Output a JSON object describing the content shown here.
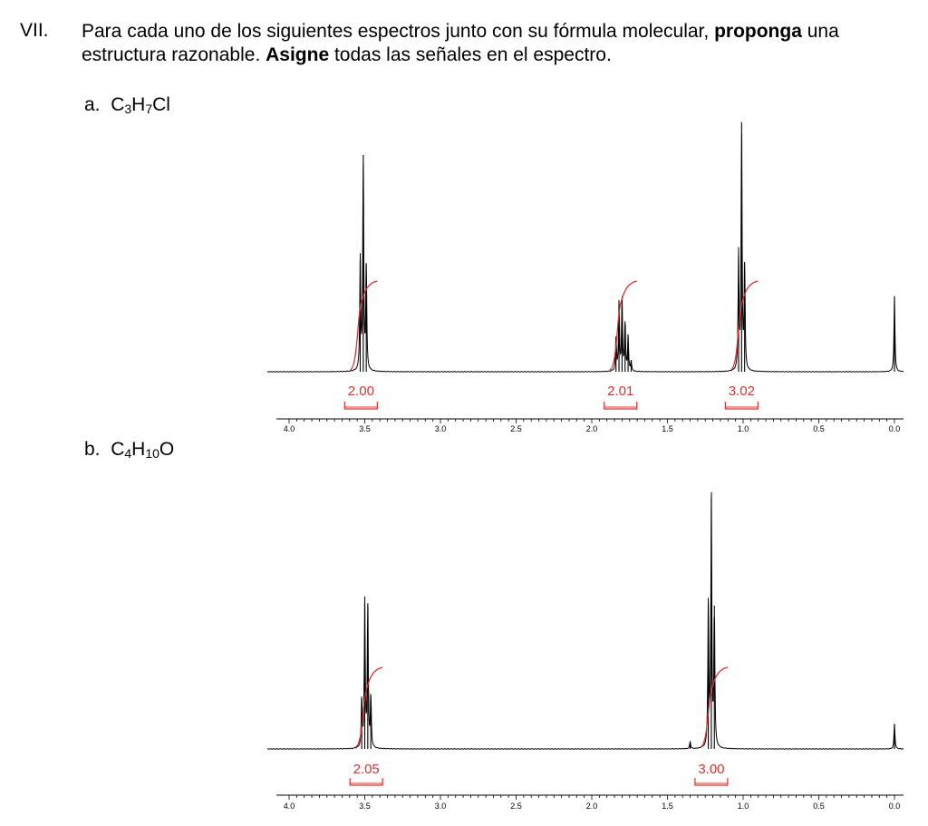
{
  "question": {
    "number": "VII.",
    "text_1": "Para cada uno de los siguientes espectros junto con su fórmula molecular, ",
    "bold_1": "proponga",
    "text_2": " una estructura razonable.  ",
    "bold_2": "Asigne",
    "text_3": " todas las señales en el espectro."
  },
  "parts": [
    {
      "label": "a.",
      "formula": {
        "c": "3",
        "h": "7",
        "tail": "Cl"
      }
    },
    {
      "label": "b.",
      "formula": {
        "c": "4",
        "h": "10",
        "tail": "O"
      }
    }
  ],
  "chart_data": [
    {
      "type": "line",
      "xlabel": "",
      "ylabel": "",
      "xlim": [
        4.0,
        0.0
      ],
      "x_ticks": [
        "4.0",
        "3.5",
        "3.0",
        "2.5",
        "2.0",
        "1.5",
        "1.0",
        "0.5",
        "0.0"
      ],
      "x_ticks_reversed": true,
      "ylim": [
        0,
        1
      ],
      "peaks": [
        {
          "shift": 3.53,
          "height": 0.44
        },
        {
          "shift": 3.51,
          "height": 0.86
        },
        {
          "shift": 3.49,
          "height": 0.43
        },
        {
          "shift": 1.84,
          "height": 0.14
        },
        {
          "shift": 1.82,
          "height": 0.27
        },
        {
          "shift": 1.8,
          "height": 0.29
        },
        {
          "shift": 1.78,
          "height": 0.2
        },
        {
          "shift": 1.76,
          "height": 0.14
        },
        {
          "shift": 1.74,
          "height": 0.04
        },
        {
          "shift": 1.03,
          "height": 0.46
        },
        {
          "shift": 1.01,
          "height": 0.99
        },
        {
          "shift": 0.99,
          "height": 0.43
        },
        {
          "shift": 0.0,
          "height": 0.3
        }
      ],
      "integrations": [
        {
          "value": "2.00",
          "from": 3.6,
          "to": 3.45
        },
        {
          "value": "2.01",
          "from": 1.92,
          "to": 1.7
        },
        {
          "value": "3.02",
          "from": 1.12,
          "to": 0.9
        }
      ]
    },
    {
      "type": "line",
      "xlabel": "",
      "ylabel": "",
      "xlim": [
        4.0,
        0.0
      ],
      "x_ticks": [
        "4.0",
        "3.5",
        "3.0",
        "2.5",
        "2.0",
        "1.5",
        "1.0",
        "0.5",
        "0.0"
      ],
      "x_ticks_reversed": true,
      "ylim": [
        0,
        1
      ],
      "peaks": [
        {
          "shift": 3.52,
          "height": 0.2
        },
        {
          "shift": 3.5,
          "height": 0.58
        },
        {
          "shift": 3.48,
          "height": 0.58
        },
        {
          "shift": 3.46,
          "height": 0.21
        },
        {
          "shift": 1.35,
          "height": 0.03
        },
        {
          "shift": 1.23,
          "height": 0.58
        },
        {
          "shift": 1.21,
          "height": 1.0
        },
        {
          "shift": 1.19,
          "height": 0.57
        },
        {
          "shift": 0.0,
          "height": 0.1
        }
      ],
      "integrations": [
        {
          "value": "2.05",
          "from": 3.6,
          "to": 3.38
        },
        {
          "value": "3.00",
          "from": 1.3,
          "to": 1.12
        }
      ]
    }
  ]
}
